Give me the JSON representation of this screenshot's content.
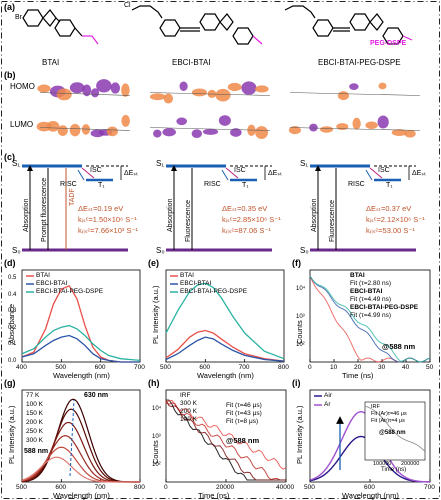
{
  "panels": {
    "a": "(a)",
    "b": "(b)",
    "c": "(c)",
    "d": "(d)",
    "e": "(e)",
    "f": "(f)",
    "g": "(g)",
    "h": "(h)",
    "i": "(i)"
  },
  "molecules": [
    "BTAI",
    "EBCI-BTAI",
    "EBCI-BTAI-PEG-DSPE"
  ],
  "structure_labels": {
    "br": "Br",
    "cl": "Cl",
    "peg": "PEG-DSPE"
  },
  "orbital_labels": {
    "homo": "HOMO",
    "lumo": "LUMO"
  },
  "energy_diagram": {
    "s1": "S₁",
    "s0": "S₀",
    "t1": "T₁",
    "isc": "ISC",
    "risc": "RISC",
    "dest": "ΔEₛₜ",
    "absorption": "Absorption",
    "prompt_fluorescence": "Prompt fluorescence",
    "fluorescence": "Fluorescence",
    "tadf": "TADF",
    "params": [
      [
        "ΔEₛₜ=0.19 eV",
        "kᵢₛᶜ=1.50×10⁶ S⁻¹",
        "kᵣᵢₛᶜ=7.66×10³ S⁻¹"
      ],
      [
        "ΔEₛₜ=0.35 eV",
        "kᵢₛᶜ=2.85×10⁶ S⁻¹",
        "kᵣᵢₛᶜ=87.06 S⁻¹"
      ],
      [
        "ΔEₛₜ=0.37 eV",
        "kᵢₛᶜ=2.12×10⁶ S⁻¹",
        "kᵣᵢₛᶜ=53.00 S⁻¹"
      ]
    ]
  },
  "colors": {
    "btai": "#e8504a",
    "ebci": "#2a55a8",
    "peg": "#2ab3a0",
    "black": "#000000",
    "purple": "#7a3fb0",
    "orange": "#c0532a"
  },
  "chart_data": [
    {
      "panel": "d",
      "type": "line",
      "xlabel": "Wavelength (nm)",
      "ylabel": "Absorbance",
      "xlim": [
        400,
        700
      ],
      "xticks": [
        400,
        500,
        600,
        700
      ],
      "legend": "top-right",
      "series": [
        {
          "name": "BTAI",
          "color": "#e8504a",
          "x": [
            400,
            430,
            460,
            480,
            500,
            520,
            540,
            560,
            580,
            600,
            620,
            650,
            700
          ],
          "y": [
            0.03,
            0.06,
            0.2,
            0.35,
            0.44,
            0.46,
            0.38,
            0.22,
            0.09,
            0.03,
            0.01,
            0,
            0
          ]
        },
        {
          "name": "EBCI-BTAI",
          "color": "#2a55a8",
          "x": [
            400,
            430,
            460,
            480,
            500,
            520,
            540,
            560,
            580,
            600,
            620,
            650,
            700
          ],
          "y": [
            0.03,
            0.05,
            0.1,
            0.13,
            0.15,
            0.16,
            0.14,
            0.1,
            0.05,
            0.02,
            0.01,
            0,
            0
          ]
        },
        {
          "name": "EBCI-BTAI-PEG-DSPE",
          "color": "#2ab3a0",
          "x": [
            400,
            430,
            460,
            480,
            500,
            520,
            540,
            560,
            580,
            600,
            620,
            650,
            700
          ],
          "y": [
            0.05,
            0.08,
            0.15,
            0.19,
            0.21,
            0.22,
            0.2,
            0.16,
            0.11,
            0.07,
            0.04,
            0.02,
            0.01
          ]
        }
      ]
    },
    {
      "panel": "e",
      "type": "line",
      "xlabel": "Wavelength (nm)",
      "ylabel": "PL Intensity (a.u.)",
      "xlim": [
        500,
        800
      ],
      "xticks": [
        500,
        600,
        700,
        800
      ],
      "legend": "top-right",
      "series": [
        {
          "name": "BTAI",
          "color": "#e8504a",
          "x": [
            500,
            530,
            560,
            580,
            600,
            620,
            640,
            670,
            700,
            750,
            800
          ],
          "y": [
            0.05,
            0.15,
            0.3,
            0.36,
            0.38,
            0.35,
            0.28,
            0.18,
            0.1,
            0.04,
            0.01
          ]
        },
        {
          "name": "EBCI-BTAI",
          "color": "#2a55a8",
          "x": [
            500,
            530,
            560,
            580,
            600,
            620,
            640,
            670,
            700,
            750,
            800
          ],
          "y": [
            0.03,
            0.1,
            0.2,
            0.26,
            0.3,
            0.28,
            0.22,
            0.14,
            0.08,
            0.03,
            0.01
          ]
        },
        {
          "name": "EBCI-BTAI-PEG-DSPE",
          "color": "#2ab3a0",
          "x": [
            500,
            530,
            560,
            580,
            600,
            620,
            640,
            670,
            700,
            750,
            800
          ],
          "y": [
            0.35,
            0.62,
            0.85,
            0.93,
            0.95,
            0.9,
            0.78,
            0.55,
            0.35,
            0.13,
            0.04
          ]
        }
      ]
    },
    {
      "panel": "f",
      "type": "line",
      "xlabel": "Time (ns)",
      "ylabel": "Counts",
      "xlim": [
        0,
        50
      ],
      "xticks": [
        0,
        10,
        20,
        30,
        40,
        50
      ],
      "yscale": "log",
      "legend_entries": [
        "BTAI",
        "Fit (τ=2.80 ns)",
        "EBCI-BTAI",
        "Fit (τ=4.49 ns)",
        "EBCI-BTAI-PEG-DSPE",
        "Fit (τ=4.99 ns)"
      ],
      "annotation": "@588 nm",
      "series": [
        {
          "name": "BTAI",
          "tau": 2.8,
          "color": "#e8504a"
        },
        {
          "name": "EBCI-BTAI",
          "tau": 4.49,
          "color": "#2a55a8"
        },
        {
          "name": "EBCI-BTAI-PEG-DSPE",
          "tau": 4.99,
          "color": "#2ab3a0"
        }
      ]
    },
    {
      "panel": "g",
      "type": "line",
      "xlabel": "Wavelength (nm)",
      "ylabel": "PL Intensity (a.u.)",
      "xlim": [
        500,
        800
      ],
      "xticks": [
        500,
        600,
        700,
        800
      ],
      "annotations": [
        "630 nm",
        "588 nm"
      ],
      "series": [
        {
          "name": "77 K",
          "peak": 630,
          "amp": 1.0,
          "color": "#3a0000"
        },
        {
          "name": "100 K",
          "peak": 625,
          "amp": 0.88,
          "color": "#5a0a05"
        },
        {
          "name": "150 K",
          "peak": 618,
          "amp": 0.72,
          "color": "#7a1a10"
        },
        {
          "name": "200 K",
          "peak": 610,
          "amp": 0.56,
          "color": "#9a2a20"
        },
        {
          "name": "250 K",
          "peak": 600,
          "amp": 0.42,
          "color": "#c04a40"
        },
        {
          "name": "300 K",
          "peak": 588,
          "amp": 0.3,
          "color": "#e07a70"
        }
      ]
    },
    {
      "panel": "h",
      "type": "line",
      "xlabel": "Time (ns)",
      "ylabel": "Counts",
      "xlim": [
        0,
        40000
      ],
      "xticks": [
        0,
        20000,
        40000
      ],
      "yscale": "log",
      "legend_entries": [
        "IRF",
        "300 K",
        "200 K",
        "100 K"
      ],
      "fits": [
        "Fit (τ=46 μs)",
        "Fit (τ=43 μs)",
        "Fit (τ=8 μs)"
      ],
      "annotation": "@588 nm"
    },
    {
      "panel": "i",
      "type": "line",
      "xlabel": "Wavelength (nm)",
      "ylabel": "PL Intensity (a.u.)",
      "xlim": [
        500,
        700
      ],
      "xticks": [
        500,
        600,
        700
      ],
      "series": [
        {
          "name": "Air",
          "color": "#2a1a8a",
          "peak": 585,
          "amp": 0.55
        },
        {
          "name": "Ar",
          "color": "#a050d0",
          "peak": 585,
          "amp": 0.85
        }
      ],
      "inset": {
        "xlabel": "Time (ns)",
        "xticks": [
          100000,
          200000
        ],
        "legend_entries": [
          "IRF",
          "Fit (Ar)τ=46 μs",
          "Fit (Air)τ=4 μs"
        ],
        "annotation": "@588 nm"
      }
    }
  ],
  "tick_text": {
    "d_y": [
      "0.0",
      "0.1",
      "0.2",
      "0.3",
      "0.4",
      "0.5"
    ],
    "f_y": [
      "10²",
      "10³",
      "10⁴"
    ],
    "h_y": [
      "10²",
      "10³",
      "10⁴"
    ]
  }
}
